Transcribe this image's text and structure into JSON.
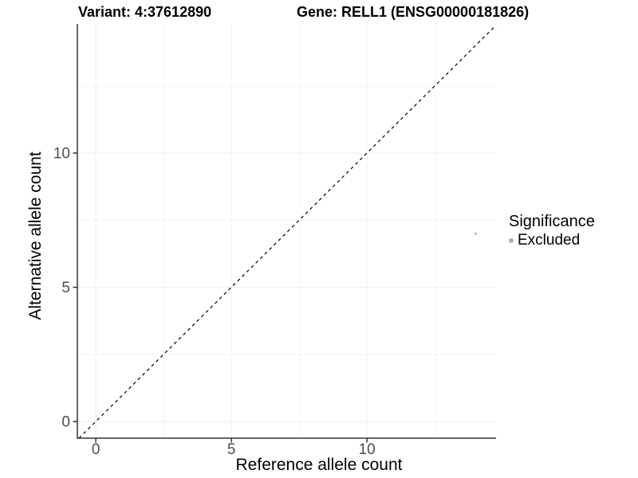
{
  "header": {
    "title_variant": "Variant: 4:37612890",
    "title_gene": "Gene: RELL1 (ENSG00000181826)"
  },
  "chart_data": {
    "type": "scatter",
    "title_left": "Variant: 4:37612890",
    "title_right": "Gene: RELL1 (ENSG00000181826)",
    "xlabel": "Reference allele count",
    "ylabel": "Alternative allele count",
    "xlim": [
      -0.68,
      14.76
    ],
    "ylim": [
      -0.62,
      14.81
    ],
    "x_ticks": [
      0,
      5,
      10
    ],
    "y_ticks": [
      0,
      5,
      10
    ],
    "x_minor": [
      2.5,
      7.5,
      12.5
    ],
    "y_minor": [
      2.5,
      7.5,
      12.5
    ],
    "grid": true,
    "legend_position": "right",
    "identity_line": {
      "style": "dashed",
      "from": [
        -0.62,
        -0.62
      ],
      "to": [
        14.76,
        14.76
      ],
      "color": "#000000"
    },
    "series": [
      {
        "name": "Excluded",
        "color": "#c2c2c2",
        "radius": 1.8,
        "points": [
          {
            "x": 14,
            "y": 7
          }
        ]
      }
    ],
    "legend": {
      "title": "Significance",
      "entries": [
        {
          "label": "Excluded",
          "color": "#b0b0b0"
        }
      ]
    }
  },
  "colors": {
    "axis_line": "#333333",
    "tick_label": "#4d4d4d",
    "grid_major": "#efefef",
    "grid_minor": "#f5f5f5",
    "background": "#ffffff",
    "dashed_line": "#000000"
  }
}
